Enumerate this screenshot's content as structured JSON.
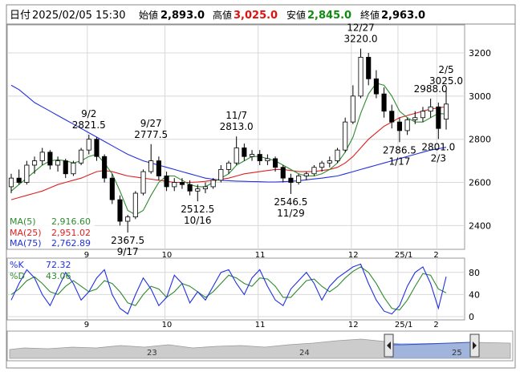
{
  "header": {
    "date_label": "日付",
    "date": "2025/02/05 15:30",
    "open_label": "始値",
    "open": "2,893.0",
    "high_label": "高値",
    "high": "3,025.0",
    "low_label": "安値",
    "low": "2,845.0",
    "close_label": "終値",
    "close": "2,963.0",
    "colors": {
      "high": "#e01010",
      "low": "#108a10",
      "text": "#000000"
    }
  },
  "chart_data": [
    {
      "type": "candlestick",
      "yticks": [
        2400,
        2600,
        2800,
        3000,
        3200
      ],
      "ylim": [
        2290,
        3330
      ],
      "xticks": [
        "9",
        "10",
        "11",
        "12",
        "25/1",
        "2"
      ],
      "grid": true,
      "annotations": [
        {
          "date": "9/2",
          "value": "2821.5"
        },
        {
          "date": "9/17",
          "value": "2367.5"
        },
        {
          "date": "9/27",
          "value": "2777.5"
        },
        {
          "date": "10/16",
          "value": "2512.5"
        },
        {
          "date": "11/7",
          "value": "2813.0"
        },
        {
          "date": "11/29",
          "value": "2546.5"
        },
        {
          "date": "12/27",
          "value": "3220.0"
        },
        {
          "date": "1/17",
          "value": "2786.5"
        },
        {
          "date": "2/3",
          "value": "2801.0"
        },
        {
          "date": "2/5",
          "value": "3025.0"
        },
        {
          "date": "",
          "value": "2988.0"
        }
      ],
      "ma_legend": [
        {
          "label": "MA(5)",
          "value": "2,916.60",
          "color": "#2e8b2e"
        },
        {
          "label": "MA(25)",
          "value": "2,951.02",
          "color": "#e02020"
        },
        {
          "label": "MA(75)",
          "value": "2,762.89",
          "color": "#2030e0"
        }
      ],
      "candles": [
        [
          2580,
          2640,
          2550,
          2620
        ],
        [
          2620,
          2660,
          2590,
          2600
        ],
        [
          2600,
          2700,
          2590,
          2680
        ],
        [
          2680,
          2720,
          2640,
          2700
        ],
        [
          2700,
          2760,
          2680,
          2740
        ],
        [
          2740,
          2750,
          2660,
          2680
        ],
        [
          2680,
          2720,
          2650,
          2700
        ],
        [
          2700,
          2710,
          2620,
          2640
        ],
        [
          2640,
          2700,
          2630,
          2690
        ],
        [
          2690,
          2760,
          2680,
          2750
        ],
        [
          2750,
          2821.5,
          2730,
          2800
        ],
        [
          2800,
          2810,
          2700,
          2720
        ],
        [
          2720,
          2730,
          2600,
          2620
        ],
        [
          2620,
          2640,
          2500,
          2520
        ],
        [
          2520,
          2540,
          2400,
          2420
        ],
        [
          2420,
          2450,
          2367.5,
          2440
        ],
        [
          2440,
          2560,
          2430,
          2550
        ],
        [
          2550,
          2660,
          2540,
          2650
        ],
        [
          2650,
          2777.5,
          2640,
          2700
        ],
        [
          2700,
          2720,
          2610,
          2630
        ],
        [
          2630,
          2650,
          2560,
          2580
        ],
        [
          2580,
          2620,
          2560,
          2600
        ],
        [
          2600,
          2620,
          2570,
          2590
        ],
        [
          2590,
          2610,
          2540,
          2560
        ],
        [
          2560,
          2590,
          2512.5,
          2570
        ],
        [
          2570,
          2600,
          2550,
          2580
        ],
        [
          2580,
          2620,
          2570,
          2610
        ],
        [
          2610,
          2680,
          2600,
          2660
        ],
        [
          2660,
          2700,
          2640,
          2690
        ],
        [
          2690,
          2813,
          2680,
          2760
        ],
        [
          2760,
          2780,
          2700,
          2720
        ],
        [
          2720,
          2750,
          2700,
          2730
        ],
        [
          2730,
          2750,
          2680,
          2700
        ],
        [
          2700,
          2730,
          2680,
          2710
        ],
        [
          2710,
          2720,
          2650,
          2670
        ],
        [
          2670,
          2680,
          2600,
          2620
        ],
        [
          2620,
          2640,
          2546.5,
          2600
        ],
        [
          2600,
          2640,
          2590,
          2630
        ],
        [
          2630,
          2650,
          2610,
          2640
        ],
        [
          2640,
          2680,
          2630,
          2670
        ],
        [
          2670,
          2700,
          2650,
          2690
        ],
        [
          2690,
          2720,
          2670,
          2700
        ],
        [
          2700,
          2760,
          2690,
          2750
        ],
        [
          2750,
          2900,
          2740,
          2880
        ],
        [
          2880,
          3050,
          2870,
          3000
        ],
        [
          3000,
          3220,
          2990,
          3180
        ],
        [
          3180,
          3200,
          3050,
          3080
        ],
        [
          3080,
          3120,
          2990,
          3010
        ],
        [
          3010,
          3040,
          2900,
          2930
        ],
        [
          2930,
          2960,
          2850,
          2880
        ],
        [
          2880,
          2900,
          2786.5,
          2840
        ],
        [
          2840,
          2900,
          2820,
          2890
        ],
        [
          2890,
          2930,
          2870,
          2900
        ],
        [
          2900,
          2950,
          2880,
          2930
        ],
        [
          2930,
          2988,
          2900,
          2950
        ],
        [
          2950,
          2970,
          2801,
          2850
        ],
        [
          2893,
          3025,
          2845,
          2963
        ]
      ],
      "ma5": [
        2560,
        2590,
        2620,
        2650,
        2680,
        2700,
        2705,
        2700,
        2690,
        2700,
        2720,
        2730,
        2690,
        2640,
        2560,
        2470,
        2450,
        2470,
        2540,
        2600,
        2630,
        2630,
        2610,
        2590,
        2580,
        2580,
        2600,
        2620,
        2640,
        2680,
        2700,
        2720,
        2720,
        2710,
        2700,
        2680,
        2660,
        2640,
        2630,
        2630,
        2640,
        2660,
        2690,
        2740,
        2810,
        2920,
        3010,
        3060,
        3050,
        3000,
        2930,
        2900,
        2880,
        2880,
        2900,
        2920,
        2916.6
      ],
      "ma25": [
        2520,
        2530,
        2540,
        2550,
        2560,
        2575,
        2590,
        2600,
        2610,
        2620,
        2635,
        2650,
        2655,
        2650,
        2640,
        2630,
        2625,
        2620,
        2615,
        2610,
        2605,
        2600,
        2600,
        2600,
        2602,
        2605,
        2610,
        2615,
        2620,
        2630,
        2640,
        2645,
        2650,
        2655,
        2660,
        2660,
        2655,
        2650,
        2650,
        2650,
        2655,
        2660,
        2670,
        2690,
        2720,
        2760,
        2800,
        2830,
        2860,
        2880,
        2900,
        2910,
        2920,
        2930,
        2940,
        2945,
        2951.02
      ],
      "ma75": [
        3050,
        3030,
        3000,
        2970,
        2950,
        2930,
        2910,
        2890,
        2870,
        2850,
        2830,
        2810,
        2790,
        2770,
        2750,
        2730,
        2715,
        2700,
        2690,
        2680,
        2670,
        2660,
        2650,
        2640,
        2630,
        2620,
        2615,
        2610,
        2608,
        2606,
        2605,
        2604,
        2603,
        2602,
        2602,
        2603,
        2605,
        2608,
        2612,
        2616,
        2620,
        2625,
        2630,
        2640,
        2650,
        2660,
        2670,
        2680,
        2690,
        2700,
        2710,
        2720,
        2730,
        2740,
        2750,
        2756,
        2762.89
      ]
    },
    {
      "type": "line",
      "name": "stochastic",
      "yticks": [
        0,
        40,
        80
      ],
      "ylim": [
        0,
        100
      ],
      "xticks": [
        "9",
        "10",
        "11",
        "12",
        "25/1",
        "2"
      ],
      "legend": [
        {
          "label": "%K",
          "value": "72.32",
          "color": "#2030e0"
        },
        {
          "label": "%D",
          "value": "43.06",
          "color": "#2e8b2e"
        }
      ],
      "k": [
        30,
        60,
        85,
        70,
        40,
        20,
        50,
        80,
        60,
        30,
        45,
        70,
        85,
        40,
        15,
        5,
        40,
        70,
        50,
        20,
        35,
        75,
        60,
        25,
        45,
        30,
        55,
        80,
        85,
        60,
        40,
        70,
        85,
        55,
        30,
        20,
        50,
        65,
        80,
        60,
        30,
        55,
        70,
        80,
        90,
        95,
        60,
        30,
        10,
        5,
        20,
        55,
        80,
        90,
        60,
        15,
        72.32
      ],
      "d": [
        40,
        50,
        65,
        72,
        60,
        45,
        40,
        55,
        65,
        55,
        45,
        50,
        65,
        60,
        45,
        25,
        20,
        40,
        55,
        50,
        35,
        45,
        60,
        55,
        45,
        35,
        45,
        60,
        75,
        70,
        60,
        55,
        70,
        68,
        55,
        35,
        35,
        50,
        65,
        68,
        55,
        45,
        55,
        70,
        82,
        90,
        80,
        60,
        35,
        15,
        12,
        30,
        55,
        78,
        75,
        50,
        43.06
      ]
    },
    {
      "type": "area",
      "name": "navigator",
      "xticks": [
        "23",
        "24",
        "25"
      ]
    }
  ]
}
